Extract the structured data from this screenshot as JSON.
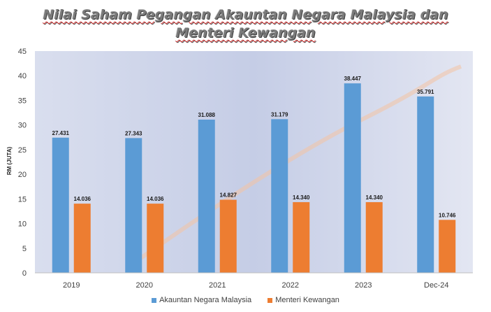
{
  "title": {
    "line1": "Nilai Saham Pegangan Akauntan Negara Malaysia dan",
    "line2": "Menteri Kewangan"
  },
  "colors": {
    "series1": "#5b9bd5",
    "series2": "#ed7d31"
  },
  "legend_placement": "bottom",
  "chart_data": {
    "type": "bar",
    "title": "Nilai Saham Pegangan Akauntan Negara Malaysia dan Menteri Kewangan",
    "ylabel": "RM (JUTA)",
    "xlabel": "",
    "categories": [
      "2019",
      "2020",
      "2021",
      "2022",
      "2023",
      "Dec-24"
    ],
    "ylim": [
      0,
      45
    ],
    "yticks": [
      0,
      5,
      10,
      15,
      20,
      25,
      30,
      35,
      40,
      45
    ],
    "grid": false,
    "series": [
      {
        "name": "Akauntan Negara Malaysia",
        "values": [
          27.431,
          27.343,
          31.088,
          31.179,
          38.447,
          35.791
        ],
        "labels": [
          "27.431",
          "27.343",
          "31.088",
          "31.179",
          "38.447",
          "35.791"
        ]
      },
      {
        "name": "Menteri Kewangan",
        "values": [
          14.036,
          14.036,
          14.827,
          14.34,
          14.34,
          10.746
        ],
        "labels": [
          "14.036",
          "14.036",
          "14.827",
          "14.340",
          "14.340",
          "10.746"
        ]
      }
    ]
  }
}
